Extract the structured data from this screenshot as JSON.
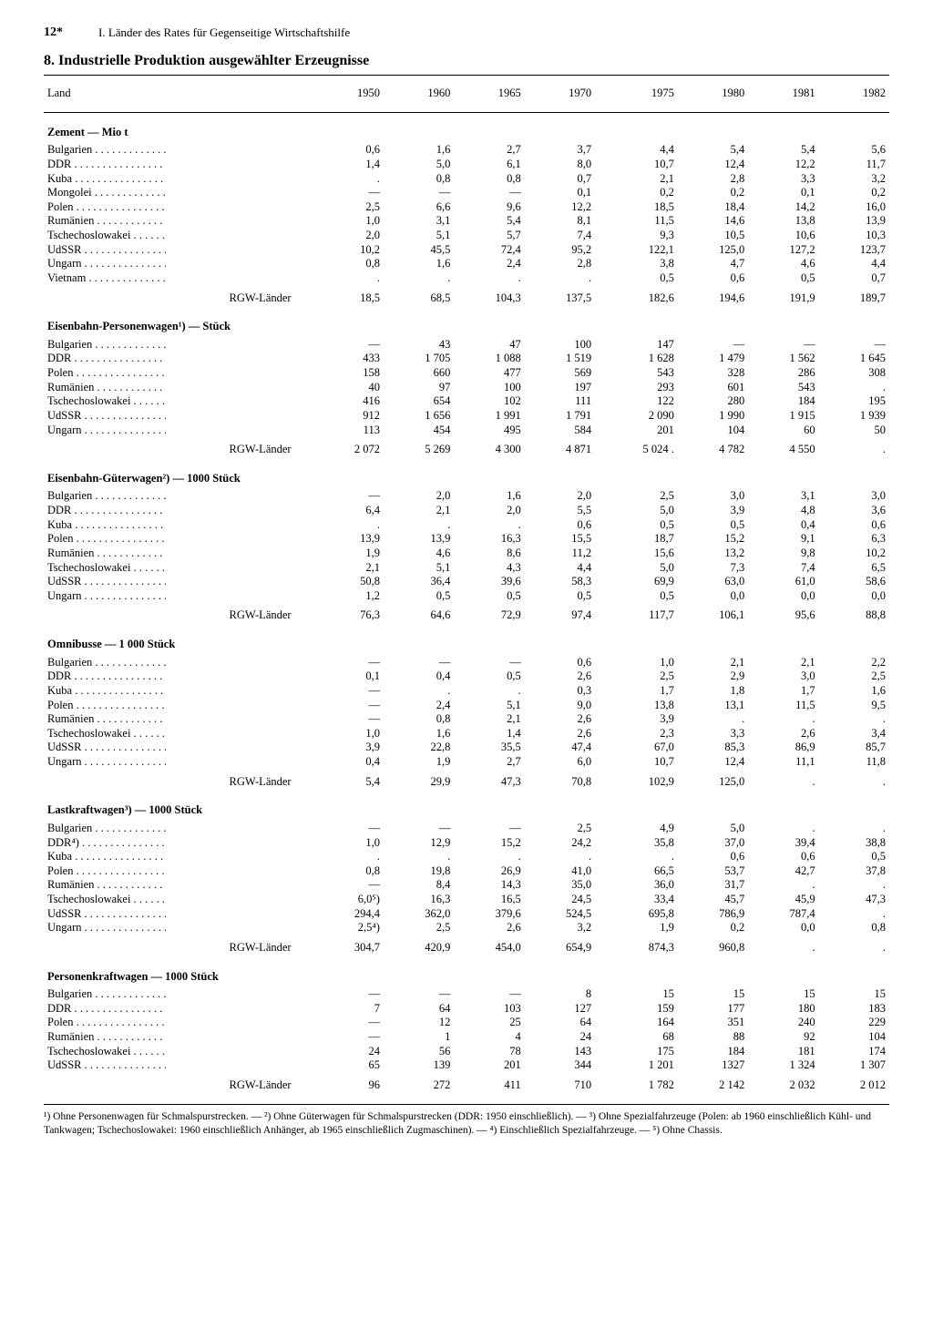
{
  "page_number": "12*",
  "section_header": "I. Länder des Rates für Gegenseitige Wirtschaftshilfe",
  "title": "8. Industrielle Produktion ausgewählter Erzeugnisse",
  "col_header_land": "Land",
  "years": [
    "1950",
    "1960",
    "1965",
    "1970",
    "1975",
    "1980",
    "1981",
    "1982"
  ],
  "total_label": "RGW-Länder",
  "sections": [
    {
      "title": "Zement — Mio t",
      "rows": [
        {
          "c": "Bulgarien",
          "v": [
            "0,6",
            "1,6",
            "2,7",
            "3,7",
            "4,4",
            "5,4",
            "5,4",
            "5,6"
          ]
        },
        {
          "c": "DDR",
          "v": [
            "1,4",
            "5,0",
            "6,1",
            "8,0",
            "10,7",
            "12,4",
            "12,2",
            "11,7"
          ]
        },
        {
          "c": "Kuba",
          "v": [
            ".",
            "0,8",
            "0,8",
            "0,7",
            "2,1",
            "2,8",
            "3,3",
            "3,2"
          ]
        },
        {
          "c": "Mongolei",
          "v": [
            "—",
            "—",
            "—",
            "0,1",
            "0,2",
            "0,2",
            "0,1",
            "0,2"
          ]
        },
        {
          "c": "Polen",
          "v": [
            "2,5",
            "6,6",
            "9,6",
            "12,2",
            "18,5",
            "18,4",
            "14,2",
            "16,0"
          ]
        },
        {
          "c": "Rumänien",
          "v": [
            "1,0",
            "3,1",
            "5,4",
            "8,1",
            "11,5",
            "14,6",
            "13,8",
            "13,9"
          ]
        },
        {
          "c": "Tschechoslowakei",
          "v": [
            "2,0",
            "5,1",
            "5,7",
            "7,4",
            "9,3",
            "10,5",
            "10,6",
            "10,3"
          ]
        },
        {
          "c": "UdSSR",
          "v": [
            "10,2",
            "45,5",
            "72,4",
            "95,2",
            "122,1",
            "125,0",
            "127,2",
            "123,7"
          ]
        },
        {
          "c": "Ungarn",
          "v": [
            "0,8",
            "1,6",
            "2,4",
            "2,8",
            "3,8",
            "4,7",
            "4,6",
            "4,4"
          ]
        },
        {
          "c": "Vietnam",
          "v": [
            ".",
            ".",
            ".",
            ".",
            "0,5",
            "0,6",
            "0,5",
            "0,7"
          ]
        }
      ],
      "total": [
        "18,5",
        "68,5",
        "104,3",
        "137,5",
        "182,6",
        "194,6",
        "191,9",
        "189,7"
      ]
    },
    {
      "title": "Eisenbahn-Personenwagen¹) — Stück",
      "rows": [
        {
          "c": "Bulgarien",
          "v": [
            "—",
            "43",
            "47",
            "100",
            "147",
            "—",
            "—",
            "—"
          ]
        },
        {
          "c": "DDR",
          "v": [
            "433",
            "1 705",
            "1 088",
            "1 519",
            "1 628",
            "1 479",
            "1 562",
            "1 645"
          ]
        },
        {
          "c": "Polen",
          "v": [
            "158",
            "660",
            "477",
            "569",
            "543",
            "328",
            "286",
            "308"
          ]
        },
        {
          "c": "Rumänien",
          "v": [
            "40",
            "97",
            "100",
            "197",
            "293",
            "601",
            "543",
            "."
          ]
        },
        {
          "c": "Tschechoslowakei",
          "v": [
            "416",
            "654",
            "102",
            "111",
            "122",
            "280",
            "184",
            "195"
          ]
        },
        {
          "c": "UdSSR",
          "v": [
            "912",
            "1 656",
            "1 991",
            "1 791",
            "2 090",
            "1 990",
            "1 915",
            "1 939"
          ]
        },
        {
          "c": "Ungarn",
          "v": [
            "113",
            "454",
            "495",
            "584",
            "201",
            "104",
            "60",
            "50"
          ]
        }
      ],
      "total": [
        "2 072",
        "5 269",
        "4 300",
        "4 871",
        "5 024 .",
        "4 782",
        "4 550",
        "."
      ]
    },
    {
      "title": "Eisenbahn-Güterwagen²) — 1000 Stück",
      "rows": [
        {
          "c": "Bulgarien",
          "v": [
            "—",
            "2,0",
            "1,6",
            "2,0",
            "2,5",
            "3,0",
            "3,1",
            "3,0"
          ]
        },
        {
          "c": "DDR",
          "v": [
            "6,4",
            "2,1",
            "2,0",
            "5,5",
            "5,0",
            "3,9",
            "4,8",
            "3,6"
          ]
        },
        {
          "c": "Kuba",
          "v": [
            ".",
            ".",
            ".",
            "0,6",
            "0,5",
            "0,5",
            "0,4",
            "0,6"
          ]
        },
        {
          "c": "Polen",
          "v": [
            "13,9",
            "13,9",
            "16,3",
            "15,5",
            "18,7",
            "15,2",
            "9,1",
            "6,3"
          ]
        },
        {
          "c": "Rumänien",
          "v": [
            "1,9",
            "4,6",
            "8,6",
            "11,2",
            "15,6",
            "13,2",
            "9,8",
            "10,2"
          ]
        },
        {
          "c": "Tschechoslowakei",
          "v": [
            "2,1",
            "5,1",
            "4,3",
            "4,4",
            "5,0",
            "7,3",
            "7,4",
            "6,5"
          ]
        },
        {
          "c": "UdSSR",
          "v": [
            "50,8",
            "36,4",
            "39,6",
            "58,3",
            "69,9",
            "63,0",
            "61,0",
            "58,6"
          ]
        },
        {
          "c": "Ungarn",
          "v": [
            "1,2",
            "0,5",
            "0,5",
            "0,5",
            "0,5",
            "0,0",
            "0,0",
            "0,0"
          ]
        }
      ],
      "total": [
        "76,3",
        "64,6",
        "72,9",
        "97,4",
        "117,7",
        "106,1",
        "95,6",
        "88,8"
      ]
    },
    {
      "title": "Omnibusse — 1 000 Stück",
      "rows": [
        {
          "c": "Bulgarien",
          "v": [
            "—",
            "—",
            "—",
            "0,6",
            "1,0",
            "2,1",
            "2,1",
            "2,2"
          ]
        },
        {
          "c": "DDR",
          "v": [
            "0,1",
            "0,4",
            "0,5",
            "2,6",
            "2,5",
            "2,9",
            "3,0",
            "2,5"
          ]
        },
        {
          "c": "Kuba",
          "v": [
            "—",
            ".",
            ".",
            "0,3",
            "1,7",
            "1,8",
            "1,7",
            "1,6"
          ]
        },
        {
          "c": "Polen",
          "v": [
            "—",
            "2,4",
            "5,1",
            "9,0",
            "13,8",
            "13,1",
            "11,5",
            "9,5"
          ]
        },
        {
          "c": "Rumänien",
          "v": [
            "—",
            "0,8",
            "2,1",
            "2,6",
            "3,9",
            ".",
            ".",
            "."
          ]
        },
        {
          "c": "Tschechoslowakei",
          "v": [
            "1,0",
            "1,6",
            "1,4",
            "2,6",
            "2,3",
            "3,3",
            "2,6",
            "3,4"
          ]
        },
        {
          "c": "UdSSR",
          "v": [
            "3,9",
            "22,8",
            "35,5",
            "47,4",
            "67,0",
            "85,3",
            "86,9",
            "85,7"
          ]
        },
        {
          "c": "Ungarn",
          "v": [
            "0,4",
            "1,9",
            "2,7",
            "6,0",
            "10,7",
            "12,4",
            "11,1",
            "11,8"
          ]
        }
      ],
      "total": [
        "5,4",
        "29,9",
        "47,3",
        "70,8",
        "102,9",
        "125,0",
        ".",
        "."
      ]
    },
    {
      "title": "Lastkraftwagen³) — 1000 Stück",
      "rows": [
        {
          "c": "Bulgarien",
          "v": [
            "—",
            "—",
            "—",
            "2,5",
            "4,9",
            "5,0",
            ".",
            "."
          ]
        },
        {
          "c": "DDR⁴)",
          "v": [
            "1,0",
            "12,9",
            "15,2",
            "24,2",
            "35,8",
            "37,0",
            "39,4",
            "38,8"
          ]
        },
        {
          "c": "Kuba",
          "v": [
            ".",
            ".",
            ".",
            ".",
            ".",
            "0,6",
            "0,6",
            "0,5"
          ]
        },
        {
          "c": "Polen",
          "v": [
            "0,8",
            "19,8",
            "26,9",
            "41,0",
            "66,5",
            "53,7",
            "42,7",
            "37,8"
          ]
        },
        {
          "c": "Rumänien",
          "v": [
            "—",
            "8,4",
            "14,3",
            "35,0",
            "36,0",
            "31,7",
            ".",
            "."
          ]
        },
        {
          "c": "Tschechoslowakei",
          "v": [
            "6,0⁵)",
            "16,3",
            "16,5",
            "24,5",
            "33,4",
            "45,7",
            "45,9",
            "47,3"
          ]
        },
        {
          "c": "UdSSR",
          "v": [
            "294,4",
            "362,0",
            "379,6",
            "524,5",
            "695,8",
            "786,9",
            "787,4",
            "."
          ]
        },
        {
          "c": "Ungarn",
          "v": [
            "2,5⁴)",
            "2,5",
            "2,6",
            "3,2",
            "1,9",
            "0,2",
            "0,0",
            "0,8"
          ]
        }
      ],
      "total": [
        "304,7",
        "420,9",
        "454,0",
        "654,9",
        "874,3",
        "960,8",
        ".",
        "."
      ]
    },
    {
      "title": "Personenkraftwagen — 1000 Stück",
      "rows": [
        {
          "c": "Bulgarien",
          "v": [
            "—",
            "—",
            "—",
            "8",
            "15",
            "15",
            "15",
            "15"
          ]
        },
        {
          "c": "DDR",
          "v": [
            "7",
            "64",
            "103",
            "127",
            "159",
            "177",
            "180",
            "183"
          ]
        },
        {
          "c": "Polen",
          "v": [
            "—",
            "12",
            "25",
            "64",
            "164",
            "351",
            "240",
            "229"
          ]
        },
        {
          "c": "Rumänien",
          "v": [
            "—",
            "1",
            "4",
            "24",
            "68",
            "88",
            "92",
            "104"
          ]
        },
        {
          "c": "Tschechoslowakei",
          "v": [
            "24",
            "56",
            "78",
            "143",
            "175",
            "184",
            "181",
            "174"
          ]
        },
        {
          "c": "UdSSR",
          "v": [
            "65",
            "139",
            "201",
            "344",
            "1 201",
            "1327",
            "1 324",
            "1 307"
          ]
        }
      ],
      "total": [
        "96",
        "272",
        "411",
        "710",
        "1 782",
        "2 142",
        "2 032",
        "2 012"
      ]
    }
  ],
  "footnotes": "¹) Ohne Personenwagen für Schmalspurstrecken. — ²) Ohne Güterwagen für Schmalspurstrecken (DDR: 1950 einschließlich). — ³) Ohne Spezialfahrzeuge (Polen: ab 1960 einschließlich Kühl- und Tankwagen; Tschechoslowakei: 1960 einschließlich Anhänger, ab 1965 einschließlich Zugmaschinen). — ⁴) Einschließlich Spezialfahrzeuge. — ⁵) Ohne Chassis."
}
